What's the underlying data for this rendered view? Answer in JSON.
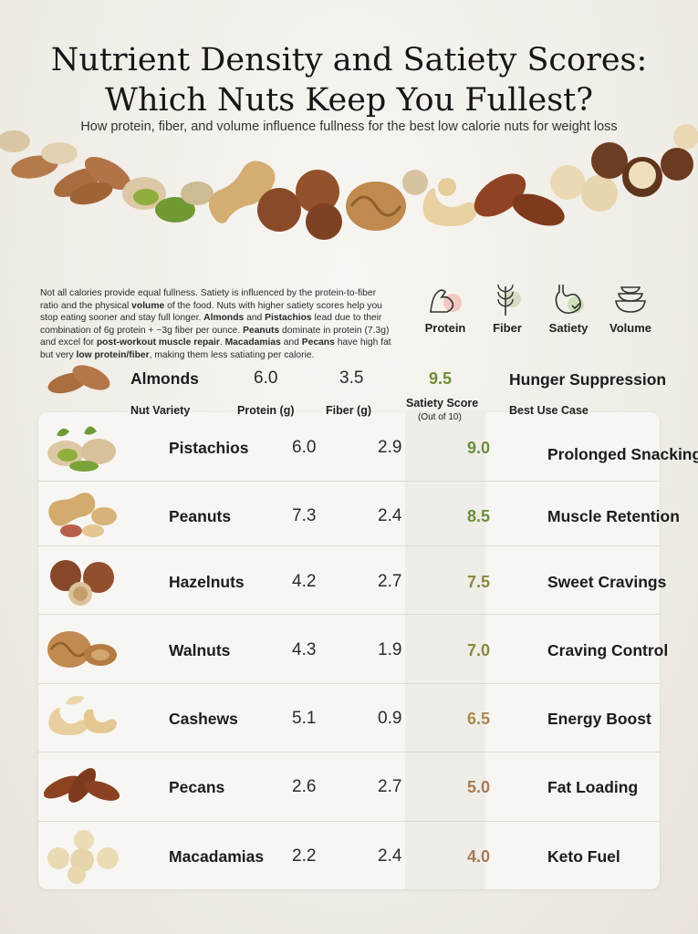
{
  "title": {
    "line1": "Nutrient Density and Satiety Scores:",
    "line2": "Which Nuts Keep You Fullest?"
  },
  "subtitle": "How protein, fiber, and volume influence fullness for the best low calorie nuts for weight loss",
  "intro": {
    "p1": "Not all calories provide equal fullness. Satiety is influenced by the protein-to-fiber ratio and the physical ",
    "b1": "volume",
    "p2": " of the food. Nuts with higher satiety scores help you stop eating sooner and stay full longer. ",
    "b2": "Almonds",
    "p3": " and ",
    "b3": "Pistachios",
    "p4": " lead due to their combination of 6g protein + ~3g fiber per ounce. ",
    "b4": "Peanuts",
    "p5": " dominate in protein (7.3g) and excel for ",
    "b5": "post-workout muscle repair",
    "p6": ". ",
    "b6": "Macadamias",
    "p7": " and ",
    "b7": "Pecans",
    "p8": " have high fat but very ",
    "b8": "low protein/fiber",
    "p9": ", making them less satiating per calorie."
  },
  "legend": [
    {
      "label": "Protein",
      "icon": "flexed-arm-icon"
    },
    {
      "label": "Fiber",
      "icon": "wheat-icon"
    },
    {
      "label": "Satiety",
      "icon": "stomach-check-icon"
    },
    {
      "label": "Volume",
      "icon": "bowls-icon"
    }
  ],
  "headers": {
    "variety": "Nut Variety",
    "protein": "Protein (g)",
    "fiber": "Fiber (g)",
    "score": "Satiety Score",
    "score_sub": "(Out of 10)",
    "use": "Best Use Case"
  },
  "colors": {
    "green": "#6b8e3a",
    "olive": "#8a8a3c",
    "amber": "#a98a4e",
    "brown": "#a77a56"
  },
  "top_row": {
    "name": "Almonds",
    "protein": "6.0",
    "fiber": "3.5",
    "score": "9.5",
    "use": "Hunger Suppression"
  },
  "rows": [
    {
      "name": "Pistachios",
      "protein": "6.0",
      "fiber": "2.9",
      "score": "9.0",
      "use": "Prolonged Snacking"
    },
    {
      "name": "Peanuts",
      "protein": "7.3",
      "fiber": "2.4",
      "score": "8.5",
      "use": "Muscle Retention"
    },
    {
      "name": "Hazelnuts",
      "protein": "4.2",
      "fiber": "2.7",
      "score": "7.5",
      "use": "Sweet Cravings"
    },
    {
      "name": "Walnuts",
      "protein": "4.3",
      "fiber": "1.9",
      "score": "7.0",
      "use": "Craving Control"
    },
    {
      "name": "Cashews",
      "protein": "5.1",
      "fiber": "0.9",
      "score": "6.5",
      "use": "Energy Boost"
    },
    {
      "name": "Pecans",
      "protein": "2.6",
      "fiber": "2.7",
      "score": "5.0",
      "use": "Fat Loading"
    },
    {
      "name": "Macadamias",
      "protein": "2.2",
      "fiber": "2.4",
      "score": "4.0",
      "use": "Keto Fuel"
    }
  ]
}
